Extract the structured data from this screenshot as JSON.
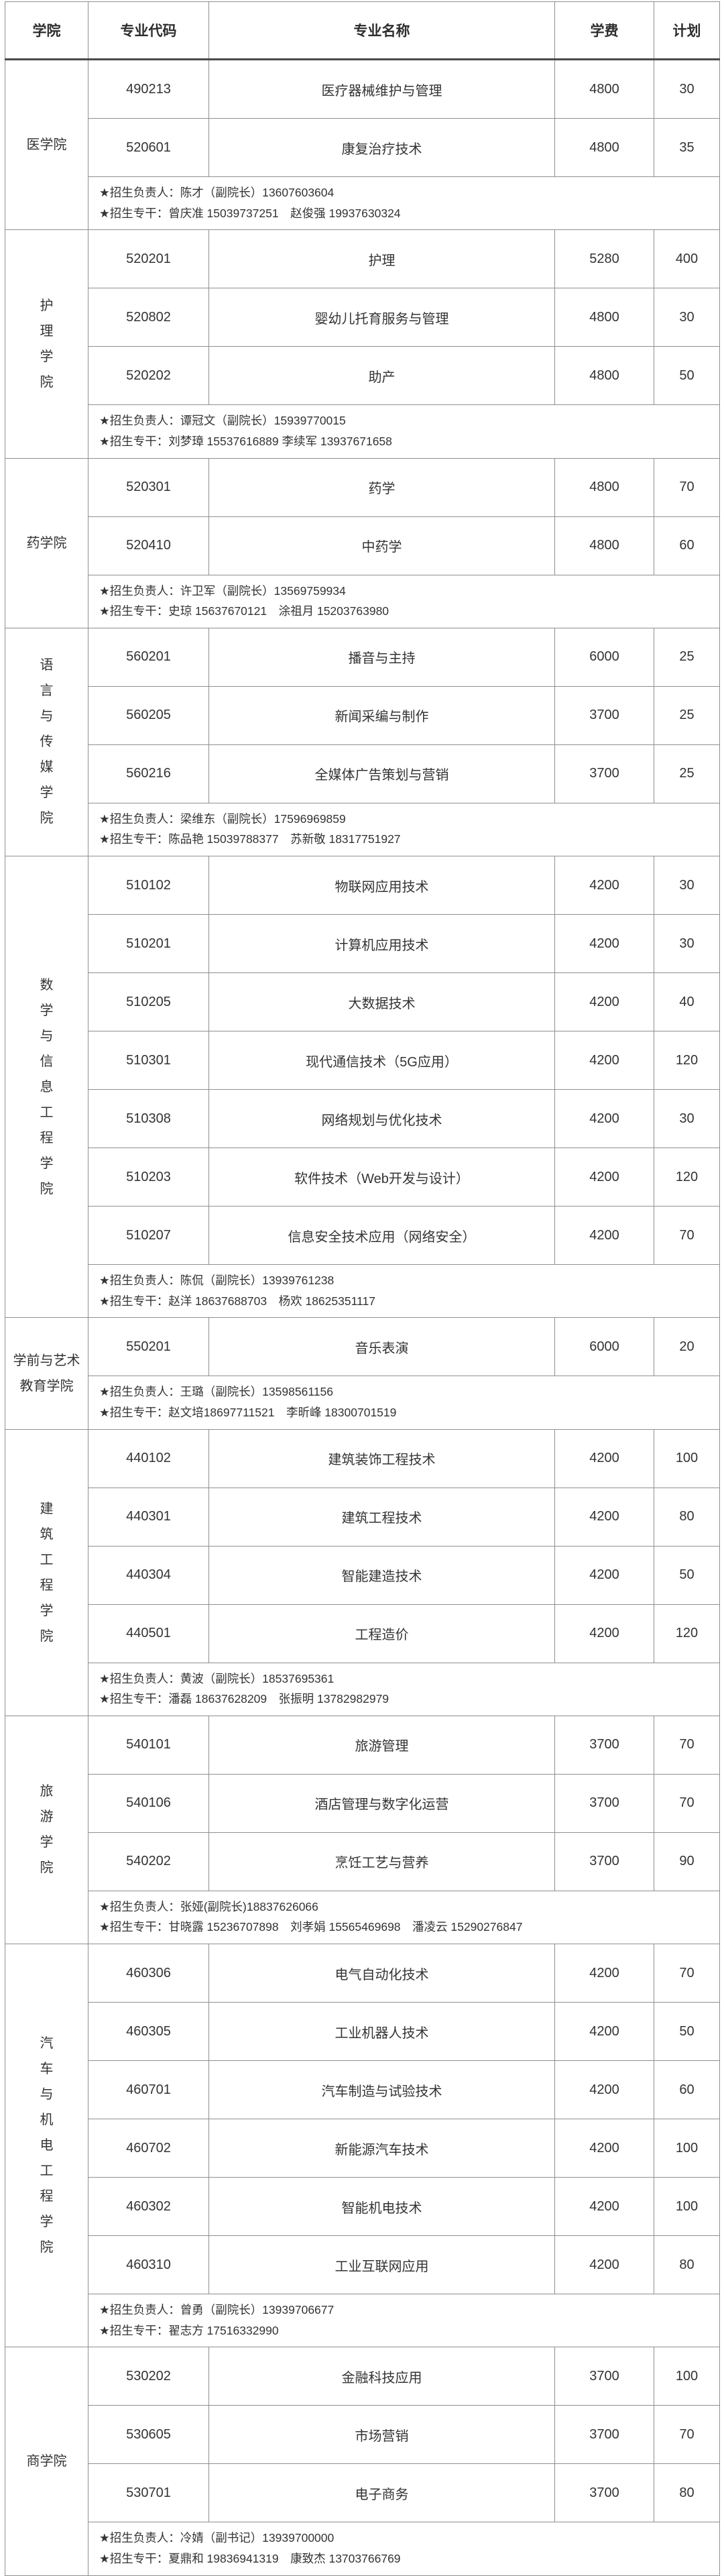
{
  "table": {
    "columns": [
      "学院",
      "专业代码",
      "专业名称",
      "学费",
      "计划"
    ],
    "sections": [
      {
        "college": "医学院",
        "vertical": false,
        "majors": [
          {
            "code": "490213",
            "name": "医疗器械维护与管理",
            "fee": "4800",
            "plan": "30"
          },
          {
            "code": "520601",
            "name": "康复治疗技术",
            "fee": "4800",
            "plan": "35"
          }
        ],
        "contacts": [
          "★招生负责人：陈才（副院长）13607603604",
          "★招生专干：曾庆准 15039737251　赵俊强 19937630324"
        ]
      },
      {
        "college": "护理学院",
        "vertical": true,
        "majors": [
          {
            "code": "520201",
            "name": "护理",
            "fee": "5280",
            "plan": "400"
          },
          {
            "code": "520802",
            "name": "婴幼儿托育服务与管理",
            "fee": "4800",
            "plan": "30"
          },
          {
            "code": "520202",
            "name": "助产",
            "fee": "4800",
            "plan": "50"
          }
        ],
        "contacts": [
          "★招生负责人：谭冠文（副院长）15939770015",
          "★招生专干：刘梦璋 15537616889 李续军 13937671658"
        ]
      },
      {
        "college": "药学院",
        "vertical": false,
        "majors": [
          {
            "code": "520301",
            "name": "药学",
            "fee": "4800",
            "plan": "70"
          },
          {
            "code": "520410",
            "name": "中药学",
            "fee": "4800",
            "plan": "60"
          }
        ],
        "contacts": [
          "★招生负责人：许卫军（副院长）13569759934",
          "★招生专干：史琼 15637670121　涂祖月 15203763980"
        ]
      },
      {
        "college": "语言与传媒学院",
        "vertical": true,
        "majors": [
          {
            "code": "560201",
            "name": "播音与主持",
            "fee": "6000",
            "plan": "25"
          },
          {
            "code": "560205",
            "name": "新闻采编与制作",
            "fee": "3700",
            "plan": "25"
          },
          {
            "code": "560216",
            "name": "全媒体广告策划与营销",
            "fee": "3700",
            "plan": "25"
          }
        ],
        "contacts": [
          "★招生负责人：梁维东（副院长）17596969859",
          "★招生专干：陈品艳 15039788377　苏新敬 18317751927"
        ]
      },
      {
        "college": "数学与信息工程学院",
        "vertical": true,
        "majors": [
          {
            "code": "510102",
            "name": "物联网应用技术",
            "fee": "4200",
            "plan": "30"
          },
          {
            "code": "510201",
            "name": "计算机应用技术",
            "fee": "4200",
            "plan": "30"
          },
          {
            "code": "510205",
            "name": "大数据技术",
            "fee": "4200",
            "plan": "40"
          },
          {
            "code": "510301",
            "name": "现代通信技术（5G应用）",
            "fee": "4200",
            "plan": "120"
          },
          {
            "code": "510308",
            "name": "网络规划与优化技术",
            "fee": "4200",
            "plan": "30"
          },
          {
            "code": "510203",
            "name": "软件技术（Web开发与设计）",
            "fee": "4200",
            "plan": "120"
          },
          {
            "code": "510207",
            "name": "信息安全技术应用（网络安全）",
            "fee": "4200",
            "plan": "70"
          }
        ],
        "contacts": [
          "★招生负责人：陈侃（副院长）13939761238",
          "★招生专干：赵洋 18637688703　杨欢 18625351117"
        ]
      },
      {
        "college": "学前与艺术教育学院",
        "vertical": false,
        "majors": [
          {
            "code": "550201",
            "name": "音乐表演",
            "fee": "6000",
            "plan": "20"
          }
        ],
        "contacts": [
          "★招生负责人：王璐（副院长）13598561156",
          "★招生专干：赵文培18697711521　李昕峰 18300701519"
        ]
      },
      {
        "college": "建筑工程学院",
        "vertical": true,
        "majors": [
          {
            "code": "440102",
            "name": "建筑装饰工程技术",
            "fee": "4200",
            "plan": "100"
          },
          {
            "code": "440301",
            "name": "建筑工程技术",
            "fee": "4200",
            "plan": "80"
          },
          {
            "code": "440304",
            "name": "智能建造技术",
            "fee": "4200",
            "plan": "50"
          },
          {
            "code": "440501",
            "name": "工程造价",
            "fee": "4200",
            "plan": "120"
          }
        ],
        "contacts": [
          "★招生负责人：黄波（副院长）18537695361",
          "★招生专干：潘磊 18637628209　张振明 13782982979"
        ]
      },
      {
        "college": "旅游学院",
        "vertical": true,
        "majors": [
          {
            "code": "540101",
            "name": "旅游管理",
            "fee": "3700",
            "plan": "70"
          },
          {
            "code": "540106",
            "name": "酒店管理与数字化运营",
            "fee": "3700",
            "plan": "70"
          },
          {
            "code": "540202",
            "name": "烹饪工艺与营养",
            "fee": "3700",
            "plan": "90"
          }
        ],
        "contacts": [
          "★招生负责人：张娅(副院长)18837626066",
          "★招生专干：甘晓露 15236707898　刘孝娟 15565469698　潘凌云 15290276847"
        ]
      },
      {
        "college": "汽车与机电工程学院",
        "vertical": true,
        "majors": [
          {
            "code": "460306",
            "name": "电气自动化技术",
            "fee": "4200",
            "plan": "70"
          },
          {
            "code": "460305",
            "name": "工业机器人技术",
            "fee": "4200",
            "plan": "50"
          },
          {
            "code": "460701",
            "name": "汽车制造与试验技术",
            "fee": "4200",
            "plan": "60"
          },
          {
            "code": "460702",
            "name": "新能源汽车技术",
            "fee": "4200",
            "plan": "100"
          },
          {
            "code": "460302",
            "name": "智能机电技术",
            "fee": "4200",
            "plan": "100"
          },
          {
            "code": "460310",
            "name": "工业互联网应用",
            "fee": "4200",
            "plan": "80"
          }
        ],
        "contacts": [
          "★招生负责人：曾勇（副院长）13939706677",
          "★招生专干：翟志方 17516332990"
        ]
      },
      {
        "college": "商学院",
        "vertical": false,
        "majors": [
          {
            "code": "530202",
            "name": "金融科技应用",
            "fee": "3700",
            "plan": "100"
          },
          {
            "code": "530605",
            "name": "市场营销",
            "fee": "3700",
            "plan": "70"
          },
          {
            "code": "530701",
            "name": "电子商务",
            "fee": "3700",
            "plan": "80"
          }
        ],
        "contacts": [
          "★招生负责人：冷婧（副书记）13939700000",
          "★招生专干：夏鼎和 19836941319　康致杰 13703766769"
        ]
      }
    ]
  },
  "colors": {
    "border": "#8f8f8f",
    "section_border": "#4a4a4a",
    "text": "#333333",
    "background": "#ffffff"
  }
}
